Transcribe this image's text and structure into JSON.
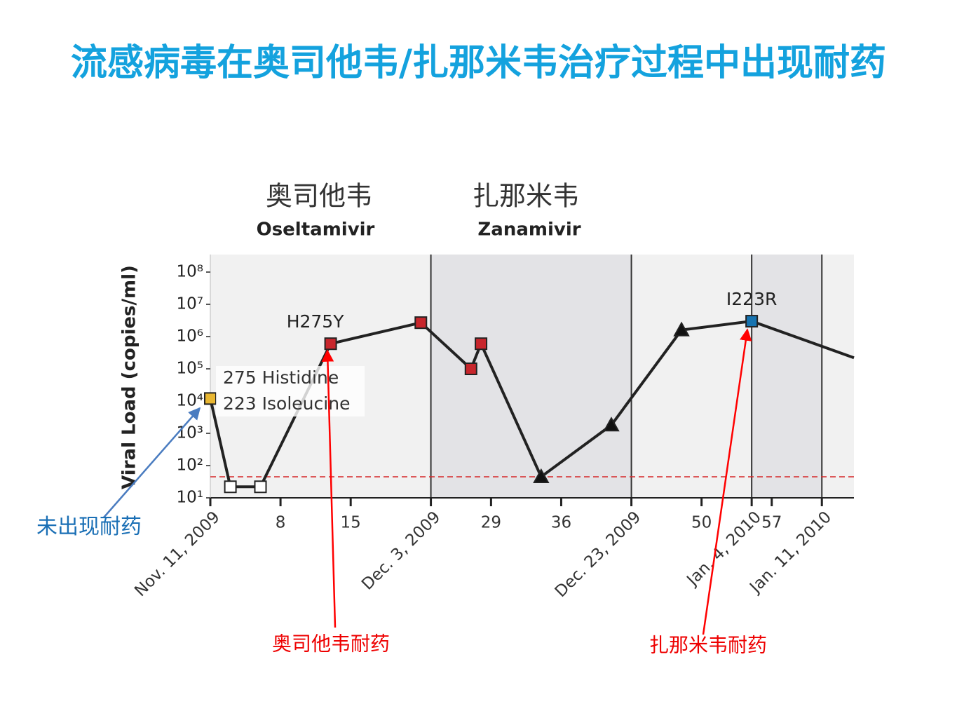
{
  "slide_title": "流感病毒在奥司他韦/扎那米韦治疗过程中出现耐药",
  "callouts": [
    "未出现耐药",
    "奥司他韦耐药",
    "扎那米韦耐药"
  ],
  "chart_data": {
    "type": "line",
    "ylabel": "Viral Load (copies/ml)",
    "phases": [
      {
        "name": "奥司他韦",
        "drug": "Oseltamivir"
      },
      {
        "name": "扎那米韦",
        "drug": "Zanamivir"
      }
    ],
    "note": [
      "275 Histidine",
      "223 Isoleucine"
    ],
    "x": [
      1,
      3,
      6,
      13,
      22,
      27,
      28,
      34,
      41,
      48,
      55,
      65.2
    ],
    "series": [
      {
        "color": "#222222",
        "values": [
          12000,
          22,
          22,
          600000,
          2700000,
          100000,
          600000,
          45,
          1800,
          1600000,
          3000000,
          220000
        ],
        "markers": [
          "square",
          "square",
          "square",
          "square",
          "square",
          "square",
          "square",
          "triangle",
          "triangle",
          "triangle",
          "square",
          "none"
        ],
        "marker_colors": [
          "#e8b631",
          "#ffffff",
          "#ffffff",
          "#c8262c",
          "#c8262c",
          "#c8262c",
          "#c8262c",
          "#111111",
          "#111111",
          "#111111",
          "#1673b0",
          "#111111"
        ],
        "point_labels": [
          null,
          null,
          null,
          "H275Y",
          null,
          null,
          null,
          null,
          null,
          null,
          "I223R",
          null
        ]
      }
    ],
    "threshold": 45,
    "threshold_color": "#d62728",
    "xlim": [
      1,
      65.2
    ],
    "xticks": [
      {
        "value": 1,
        "label": "Nov. 11, 2009"
      },
      8,
      15,
      {
        "value": 23,
        "label": "Dec. 3, 2009"
      },
      29,
      36,
      {
        "value": 43,
        "label": "Dec. 23, 2009"
      },
      50,
      {
        "value": 55,
        "label": "Jan. 4, 2010"
      },
      57,
      {
        "value": 62,
        "label": "Jan. 11, 2010"
      }
    ],
    "ylim": [
      10,
      350000000
    ],
    "log_y": true,
    "yticks": [
      {
        "value": 10,
        "label": "10¹"
      },
      {
        "value": 100,
        "label": "10²"
      },
      {
        "value": 1000,
        "label": "10³"
      },
      {
        "value": 10000,
        "label": "10⁴"
      },
      {
        "value": 100000,
        "label": "10⁵"
      },
      {
        "value": 1000000,
        "label": "10⁶"
      },
      {
        "value": 10000000,
        "label": "10⁷"
      },
      {
        "value": 100000000,
        "label": "10⁸"
      }
    ]
  }
}
